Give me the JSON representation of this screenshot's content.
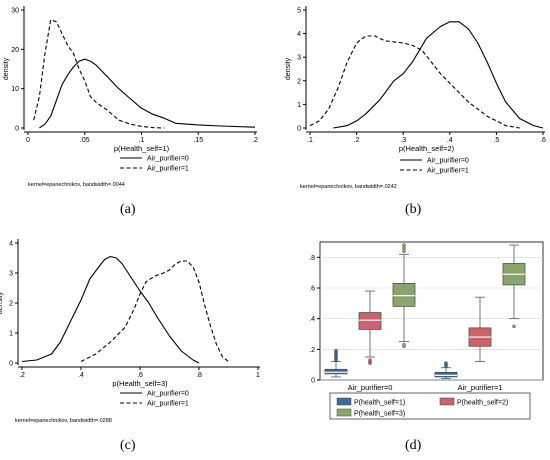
{
  "chart_data": [
    {
      "panel": "(a)",
      "type": "line",
      "xlabel": "p(Health_self=1)",
      "ylabel": "density",
      "xlim": [
        0,
        0.2
      ],
      "ylim": [
        0,
        30
      ],
      "xticks": [
        "0",
        ".05",
        ".1",
        ".15",
        ".2"
      ],
      "yticks": [
        "0",
        "10",
        "20",
        "30"
      ],
      "series": [
        {
          "name": "Air_purifier=0",
          "style": "solid",
          "x": [
            0.01,
            0.015,
            0.02,
            0.025,
            0.03,
            0.035,
            0.04,
            0.045,
            0.05,
            0.055,
            0.06,
            0.065,
            0.07,
            0.08,
            0.09,
            0.1,
            0.11,
            0.12,
            0.13,
            0.15,
            0.17,
            0.2
          ],
          "y": [
            0,
            1,
            3,
            7,
            11,
            13.5,
            15.5,
            17,
            17.5,
            17,
            16,
            14.5,
            13,
            10,
            7.5,
            5,
            3.5,
            2.5,
            1.2,
            0.8,
            0.5,
            0.2
          ]
        },
        {
          "name": "Air_purifier=1",
          "style": "dashed",
          "x": [
            0.005,
            0.01,
            0.015,
            0.02,
            0.025,
            0.03,
            0.035,
            0.04,
            0.045,
            0.05,
            0.055,
            0.06,
            0.07,
            0.08,
            0.09,
            0.1,
            0.11,
            0.12
          ],
          "y": [
            2,
            8,
            19,
            27.5,
            27,
            24,
            21,
            19,
            15,
            12,
            8,
            6.5,
            4.5,
            2,
            1,
            0.4,
            0.1,
            0
          ]
        }
      ],
      "legend": [
        "Air_purifier=0",
        "Air_purifier=1"
      ],
      "note": "kernel=epanechnikov, bandwidth=.0044"
    },
    {
      "panel": "(b)",
      "type": "line",
      "xlabel": "p(Health_self=2)",
      "ylabel": "density",
      "xlim": [
        0.1,
        0.6
      ],
      "ylim": [
        0,
        5
      ],
      "xticks": [
        ".1",
        ".2",
        ".3",
        ".4",
        ".5",
        ".6"
      ],
      "yticks": [
        "0",
        "1",
        "2",
        "3",
        "4",
        "5"
      ],
      "series": [
        {
          "name": "Air_purifier=0",
          "style": "solid",
          "x": [
            0.15,
            0.18,
            0.2,
            0.22,
            0.25,
            0.28,
            0.3,
            0.32,
            0.35,
            0.38,
            0.4,
            0.42,
            0.44,
            0.46,
            0.48,
            0.5,
            0.52,
            0.55,
            0.58,
            0.6
          ],
          "y": [
            0,
            0.1,
            0.3,
            0.6,
            1.2,
            2.0,
            2.3,
            2.8,
            3.8,
            4.3,
            4.5,
            4.5,
            4.2,
            3.6,
            2.8,
            1.9,
            1.1,
            0.4,
            0.1,
            0
          ]
        },
        {
          "name": "Air_purifier=1",
          "style": "dashed",
          "x": [
            0.1,
            0.12,
            0.14,
            0.16,
            0.18,
            0.2,
            0.22,
            0.24,
            0.26,
            0.28,
            0.3,
            0.32,
            0.34,
            0.36,
            0.38,
            0.4,
            0.42,
            0.44,
            0.46,
            0.48,
            0.5,
            0.52,
            0.55
          ],
          "y": [
            0.1,
            0.3,
            0.8,
            1.7,
            2.8,
            3.6,
            3.9,
            3.9,
            3.7,
            3.65,
            3.6,
            3.5,
            3.3,
            2.8,
            2.3,
            1.9,
            1.5,
            1.1,
            0.8,
            0.5,
            0.3,
            0.1,
            0
          ]
        }
      ],
      "legend": [
        "Air_purifier=0",
        "Air_purifier=1"
      ],
      "note": "kernel=epanechnikov, bandwidth=.0242"
    },
    {
      "panel": "(c)",
      "type": "line",
      "xlabel": "p(Health_self=3)",
      "ylabel": "density",
      "xlim": [
        0.2,
        1
      ],
      "ylim": [
        0,
        4
      ],
      "xticks": [
        ".2",
        ".4",
        ".6",
        ".8",
        "1"
      ],
      "yticks": [
        "0",
        "1",
        "2",
        "3",
        "4"
      ],
      "series": [
        {
          "name": "Air_purifier=0",
          "style": "solid",
          "x": [
            0.2,
            0.25,
            0.3,
            0.33,
            0.36,
            0.4,
            0.43,
            0.46,
            0.48,
            0.5,
            0.52,
            0.54,
            0.56,
            0.58,
            0.6,
            0.63,
            0.66,
            0.7,
            0.74,
            0.78,
            0.8
          ],
          "y": [
            0.05,
            0.1,
            0.3,
            0.7,
            1.3,
            2.1,
            2.8,
            3.2,
            3.45,
            3.55,
            3.5,
            3.3,
            3.0,
            2.7,
            2.4,
            2.0,
            1.5,
            0.9,
            0.4,
            0.1,
            0
          ]
        },
        {
          "name": "Air_purifier=1",
          "style": "dashed",
          "x": [
            0.4,
            0.45,
            0.5,
            0.55,
            0.58,
            0.6,
            0.62,
            0.65,
            0.68,
            0.7,
            0.72,
            0.74,
            0.76,
            0.78,
            0.8,
            0.82,
            0.84,
            0.86,
            0.88,
            0.9
          ],
          "y": [
            0.05,
            0.3,
            0.7,
            1.2,
            1.8,
            2.3,
            2.7,
            2.9,
            3.0,
            3.1,
            3.3,
            3.4,
            3.4,
            3.2,
            2.7,
            1.9,
            1.2,
            0.6,
            0.2,
            0.05
          ]
        }
      ],
      "legend": [
        "Air_purifier=0",
        "Air_purifier=1"
      ],
      "note": "kernel=epanechnikov, bandwidth=.0288"
    },
    {
      "panel": "(d)",
      "type": "box",
      "ylim": [
        0,
        0.9
      ],
      "yticks": [
        "0",
        ".2",
        ".4",
        ".6",
        ".8"
      ],
      "categories": [
        "Air_purifier=0",
        "Air_purifier=1"
      ],
      "series": [
        {
          "name": "P(health_self=1)",
          "color": "#3f6d9a",
          "boxes": [
            {
              "whisker_low": 0.02,
              "q1": 0.04,
              "median": 0.05,
              "q3": 0.07,
              "whisker_high": 0.12,
              "outliers": [
                0.13,
                0.14,
                0.15,
                0.16,
                0.17,
                0.18,
                0.19
              ]
            },
            {
              "whisker_low": 0.01,
              "q1": 0.02,
              "median": 0.03,
              "q3": 0.05,
              "whisker_high": 0.08,
              "outliers": [
                0.09,
                0.1,
                0.11
              ]
            }
          ]
        },
        {
          "name": "P(health_self=2)",
          "color": "#c9646c",
          "boxes": [
            {
              "whisker_low": 0.15,
              "q1": 0.33,
              "median": 0.39,
              "q3": 0.44,
              "whisker_high": 0.58,
              "outliers": [
                0.11,
                0.12,
                0.13
              ]
            },
            {
              "whisker_low": 0.12,
              "q1": 0.22,
              "median": 0.28,
              "q3": 0.34,
              "whisker_high": 0.54,
              "outliers": []
            }
          ]
        },
        {
          "name": "P(health_self=3)",
          "color": "#8aa46e",
          "boxes": [
            {
              "whisker_low": 0.25,
              "q1": 0.48,
              "median": 0.55,
              "q3": 0.63,
              "whisker_high": 0.82,
              "outliers": [
                0.22,
                0.23,
                0.84,
                0.86,
                0.88
              ]
            },
            {
              "whisker_low": 0.4,
              "q1": 0.62,
              "median": 0.69,
              "q3": 0.76,
              "whisker_high": 0.88,
              "outliers": [
                0.35
              ]
            }
          ]
        }
      ]
    }
  ]
}
